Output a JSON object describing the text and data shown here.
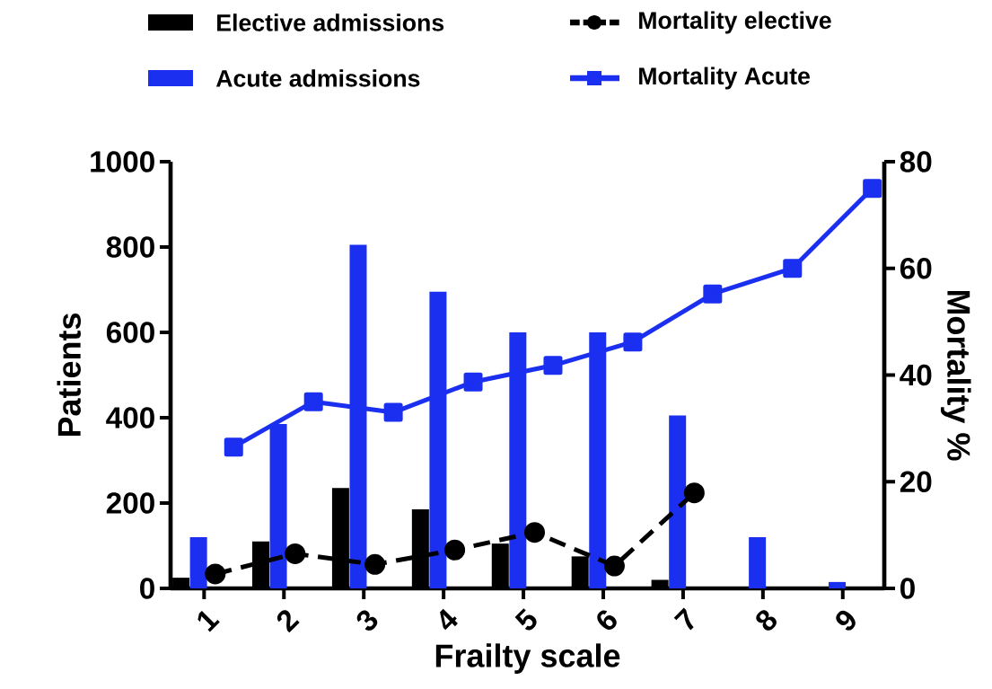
{
  "chart_data": {
    "type": "bar",
    "xlabel": "Frailty scale",
    "ylabel": "Patients",
    "y2label": "Mortality %",
    "categories": [
      "1",
      "2",
      "3",
      "4",
      "5",
      "6",
      "7",
      "8",
      "9"
    ],
    "series": [
      {
        "name": "Elective admissions",
        "color": "#000000",
        "values": [
          25,
          110,
          235,
          185,
          105,
          75,
          20,
          0,
          0
        ]
      },
      {
        "name": "Acute admissions",
        "color": "#1a2ff0",
        "values": [
          120,
          385,
          805,
          695,
          600,
          600,
          405,
          120,
          15
        ]
      },
      {
        "name": "Mortality elective",
        "type": "line",
        "axis": "y2",
        "color": "#000000",
        "marker": "circle",
        "line_style": "dashed",
        "values": [
          2.7,
          6.5,
          4.5,
          7.2,
          10.5,
          4.2,
          17.9,
          null,
          null
        ]
      },
      {
        "name": "Mortality Acute",
        "type": "line",
        "axis": "y2",
        "color": "#1a2ff0",
        "marker": "square",
        "line_style": "solid",
        "values": [
          26.5,
          35,
          33,
          38.7,
          41.8,
          46.2,
          55.2,
          60,
          75
        ]
      }
    ],
    "ylim": [
      0,
      1000
    ],
    "yticks": [
      0,
      200,
      400,
      600,
      800,
      1000
    ],
    "y2lim": [
      0,
      80
    ],
    "y2ticks": [
      0,
      20,
      40,
      60,
      80
    ],
    "legend": "top"
  }
}
